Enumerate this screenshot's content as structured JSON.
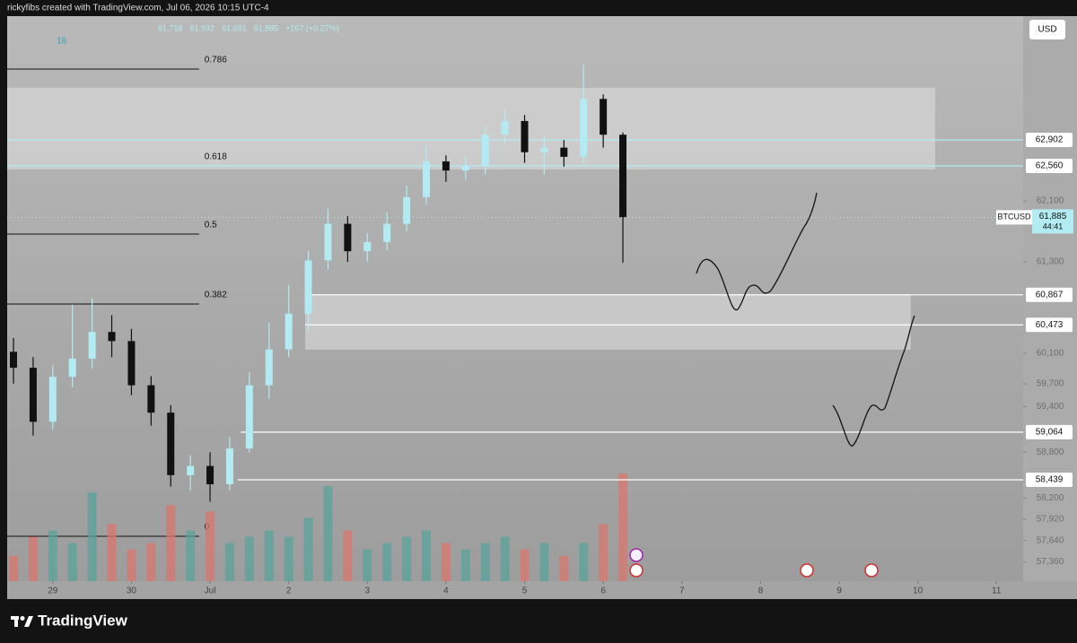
{
  "chart_data": {
    "type": "candlestick",
    "attribution": "rickyfibs created with TradingView.com, Jul 06, 2026 10:15 UTC-4",
    "legend": {
      "interval": "18",
      "values": [
        "61,718",
        "61,932",
        "61,691",
        "61,885",
        "+167 (+0.27%)"
      ]
    },
    "currency": "USD",
    "symbol": "BTCUSD",
    "last_price": {
      "value": 61885,
      "label": "61,885"
    },
    "countdown": "44:41",
    "brand": "TradingView",
    "up_color": "#b2ebf2",
    "down_color": "#111111",
    "volume_up_color": "#5aa39a",
    "volume_down_color": "#d9776e",
    "x": [
      -0.5,
      -0.25,
      0,
      0.25,
      0.5,
      0.75,
      1,
      1.25,
      1.5,
      1.75,
      2,
      2.25,
      2.5,
      2.75,
      3,
      3.25,
      3.5,
      3.75,
      4,
      4.25,
      4.5,
      4.75,
      5,
      5.25,
      5.5,
      5.75,
      6,
      6.25,
      6.5,
      6.75,
      7,
      7.25
    ],
    "open": [
      60120,
      59910,
      59200,
      59790,
      60030,
      60380,
      60260,
      59680,
      59320,
      58500,
      58620,
      58380,
      58850,
      59680,
      60150,
      60620,
      61320,
      61800,
      61440,
      61560,
      61800,
      62150,
      62620,
      62500,
      62560,
      62970,
      63150,
      62740,
      62800,
      62680,
      63440,
      62970
    ],
    "high": [
      60300,
      60050,
      59950,
      60740,
      60820,
      60600,
      60420,
      59800,
      59420,
      58760,
      58800,
      59000,
      59850,
      60500,
      61000,
      61450,
      62000,
      61900,
      61680,
      61950,
      62300,
      62820,
      62700,
      62700,
      63080,
      63300,
      63230,
      62950,
      62900,
      63890,
      63500,
      63000
    ],
    "low": [
      59700,
      59020,
      59100,
      59650,
      59900,
      60050,
      59550,
      59150,
      58350,
      58300,
      58150,
      58300,
      58800,
      59500,
      60050,
      60400,
      61200,
      61300,
      61300,
      61450,
      61700,
      62050,
      62350,
      62380,
      62450,
      62850,
      62600,
      62450,
      62550,
      62600,
      62800,
      61290
    ],
    "close": [
      59910,
      59200,
      59790,
      60030,
      60380,
      60260,
      59680,
      59320,
      58500,
      58620,
      58380,
      58850,
      59680,
      60150,
      60620,
      61320,
      61800,
      61440,
      61560,
      61800,
      62150,
      62620,
      62500,
      62560,
      62970,
      63150,
      62740,
      62800,
      62680,
      63440,
      62970,
      61885
    ],
    "volume": [
      20,
      35,
      40,
      30,
      70,
      45,
      25,
      30,
      60,
      40,
      55,
      30,
      35,
      40,
      35,
      50,
      75,
      40,
      25,
      30,
      35,
      40,
      30,
      25,
      30,
      35,
      25,
      30,
      20,
      30,
      45,
      85
    ],
    "xlim": [
      -0.58,
      12.34
    ],
    "xticks": [
      {
        "value": 0,
        "label": "29"
      },
      {
        "value": 1,
        "label": "30"
      },
      {
        "value": 2,
        "label": "Jul"
      },
      {
        "value": 3,
        "label": "2"
      },
      {
        "value": 4,
        "label": "3"
      },
      {
        "value": 5,
        "label": "4"
      },
      {
        "value": 6,
        "label": "5"
      },
      {
        "value": 7,
        "label": "6"
      },
      {
        "value": 8,
        "label": "7"
      },
      {
        "value": 9,
        "label": "8"
      },
      {
        "value": 10,
        "label": "9"
      },
      {
        "value": 11,
        "label": "10"
      },
      {
        "value": 12,
        "label": "11"
      }
    ],
    "ylim": [
      57108,
      64527
    ],
    "yticks": [
      {
        "value": 57360,
        "label": "57,360"
      },
      {
        "value": 57640,
        "label": "57,640"
      },
      {
        "value": 57920,
        "label": "57,920"
      },
      {
        "value": 58200,
        "label": "58,200"
      },
      {
        "value": 58800,
        "label": "58,800"
      },
      {
        "value": 59400,
        "label": "59,400"
      },
      {
        "value": 59700,
        "label": "59,700"
      },
      {
        "value": 60100,
        "label": "60,100"
      },
      {
        "value": 61300,
        "label": "61,300"
      },
      {
        "value": 62100,
        "label": "62,100"
      }
    ],
    "zones": [
      {
        "top": 63585,
        "bottom": 62514,
        "x_start": -0.58,
        "x_end": 11.22
      },
      {
        "top": 60877,
        "bottom": 60146,
        "x_start": 3.21,
        "x_end": 10.91
      }
    ],
    "levels": [
      {
        "value": 62902,
        "label": "62,902",
        "color": "#b2ebf2",
        "x_start": -0.58
      },
      {
        "value": 62560,
        "label": "62,560",
        "color": "#b2ebf2",
        "x_start": -0.58
      },
      {
        "value": 60867,
        "label": "60,867",
        "color": "#ffffff",
        "x_start": 3.21
      },
      {
        "value": 60473,
        "label": "60,473",
        "color": "#ffffff",
        "x_start": 3.21
      },
      {
        "value": 59064,
        "label": "59,064",
        "color": "#ffffff",
        "x_start": 2.39
      },
      {
        "value": 58439,
        "label": "58,439",
        "color": "#ffffff",
        "x_start": 2.35
      }
    ],
    "fib": {
      "x_start": -0.58,
      "x_end": 1.86,
      "levels": [
        {
          "ratio": 0.786,
          "price": 63832
        },
        {
          "ratio": 0.618,
          "price": 62560
        },
        {
          "ratio": 0.5,
          "price": 61666
        },
        {
          "ratio": 0.382,
          "price": 60747
        },
        {
          "ratio": 0,
          "price": 57697
        }
      ]
    }
  }
}
